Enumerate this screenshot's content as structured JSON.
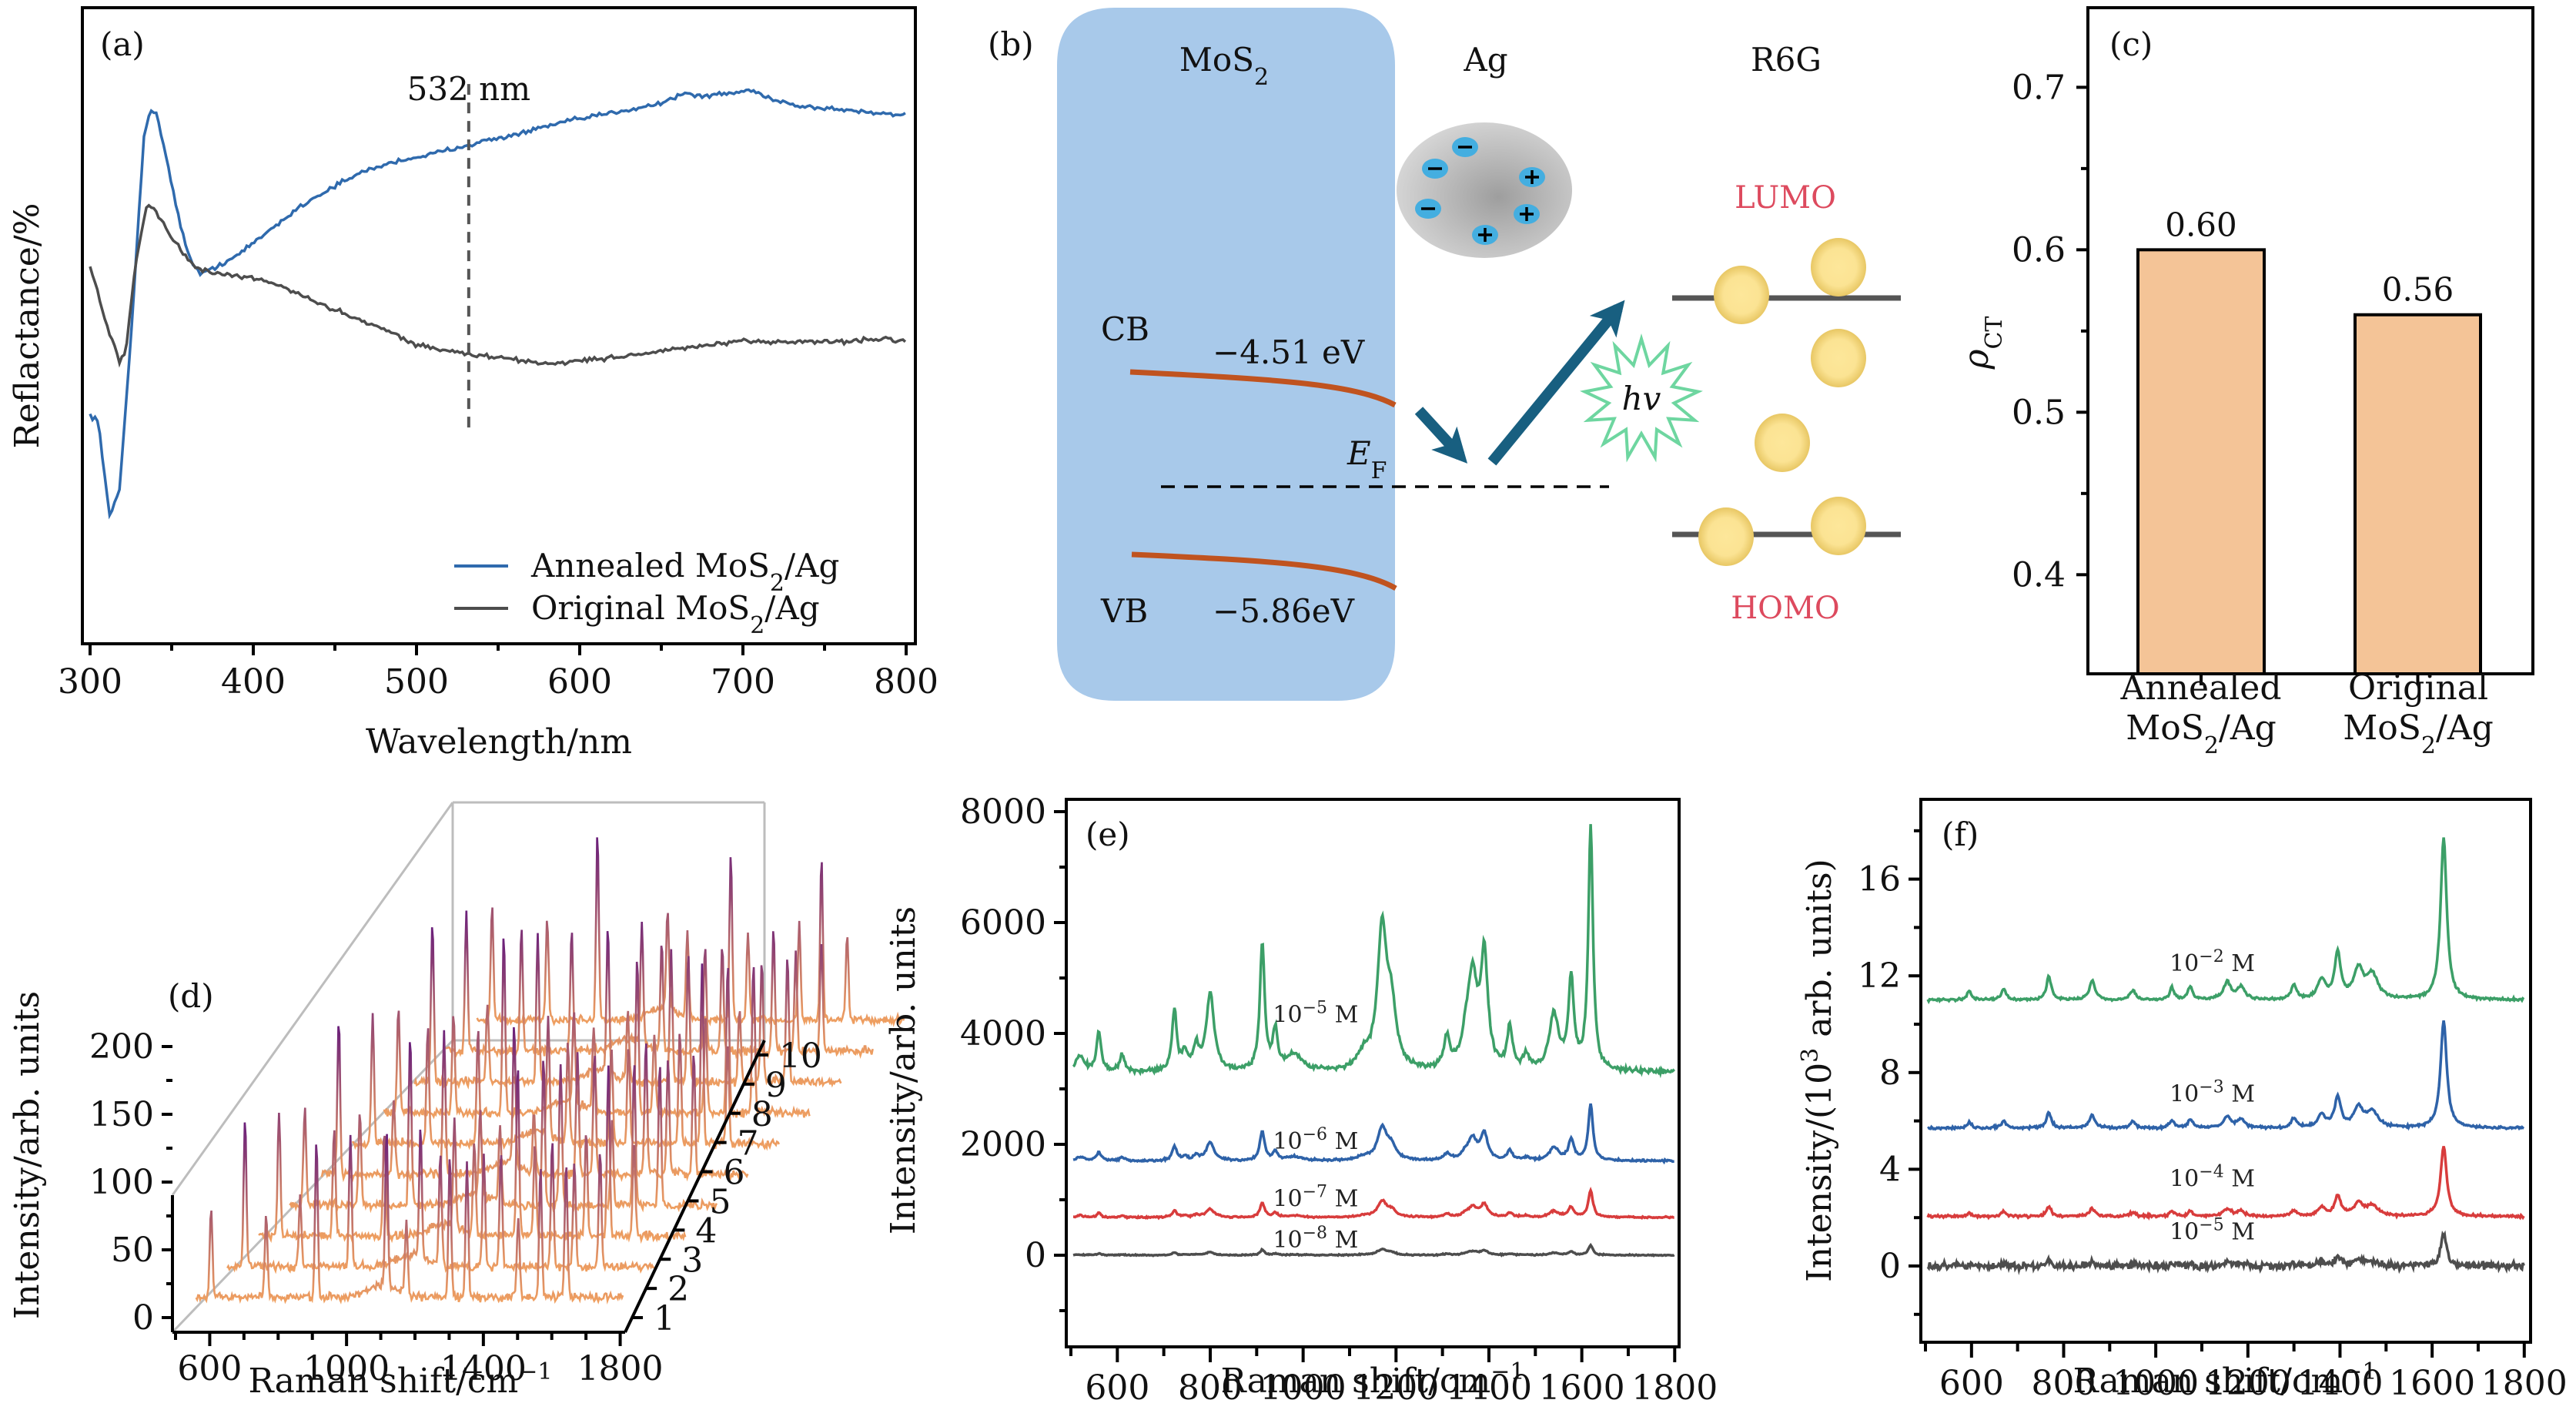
{
  "figure": {
    "panels": [
      "(a)",
      "(b)",
      "(c)",
      "(d)",
      "(e)",
      "(f)"
    ]
  },
  "colors": {
    "annealed": "#2f6aad",
    "original": "#4d4d4d",
    "bar_fill": "#f4c497",
    "mos2_box": "#a8c9ea",
    "band_line": "#c0531f",
    "arrow": "#185f80",
    "star": "#6ed6a0",
    "orbital_label": "#dd4a5e",
    "ball": "#f0d27a",
    "green": "#3c9f67",
    "blue": "#2e62a8",
    "red": "#d83c3c",
    "gray": "#4d4d4d",
    "waterfall_low": "#f0a060",
    "waterfall_high": "#6a1f7a"
  },
  "chart_data": [
    {
      "id": "a",
      "type": "line",
      "panel_label": "(a)",
      "xlabel": "Wavelength/nm",
      "ylabel": "Reflactance/%",
      "xlim": [
        298,
        803
      ],
      "ylim": [
        0,
        100
      ],
      "xticks": [
        300,
        400,
        500,
        600,
        700,
        800
      ],
      "yticks_shown": false,
      "annotation": {
        "text": "532 nm",
        "x": 532,
        "line_y_range": [
          34,
          88
        ]
      },
      "legend": {
        "placement": "bottom-right",
        "entries": [
          "Annealed MoS2/Ag",
          "Original MoS2/Ag"
        ]
      },
      "series": [
        {
          "name": "Annealed MoS2/Ag",
          "color_key": "annealed",
          "points": [
            [
              300,
              36
            ],
            [
              305,
              35
            ],
            [
              312,
              20
            ],
            [
              318,
              24
            ],
            [
              325,
              48
            ],
            [
              333,
              80
            ],
            [
              337,
              84
            ],
            [
              341,
              83
            ],
            [
              348,
              75
            ],
            [
              355,
              66
            ],
            [
              362,
              60
            ],
            [
              368,
              58
            ],
            [
              375,
              59
            ],
            [
              390,
              61
            ],
            [
              410,
              65
            ],
            [
              430,
              69
            ],
            [
              450,
              72
            ],
            [
              470,
              74.5
            ],
            [
              490,
              76
            ],
            [
              510,
              77
            ],
            [
              532,
              78.5
            ],
            [
              560,
              80
            ],
            [
              590,
              82
            ],
            [
              620,
              83.5
            ],
            [
              650,
              85
            ],
            [
              665,
              86.7
            ],
            [
              672,
              86
            ],
            [
              690,
              86.5
            ],
            [
              700,
              86.8
            ],
            [
              705,
              87
            ],
            [
              720,
              85.5
            ],
            [
              735,
              84.5
            ],
            [
              760,
              84
            ],
            [
              780,
              83.5
            ],
            [
              800,
              83.2
            ]
          ]
        },
        {
          "name": "Original MoS2/Ag",
          "color_key": "original",
          "points": [
            [
              300,
              59
            ],
            [
              305,
              55
            ],
            [
              310,
              50
            ],
            [
              315,
              47
            ],
            [
              318,
              44
            ],
            [
              322,
              46
            ],
            [
              328,
              60
            ],
            [
              334,
              68
            ],
            [
              338,
              69
            ],
            [
              345,
              66
            ],
            [
              355,
              62
            ],
            [
              365,
              59
            ],
            [
              380,
              58
            ],
            [
              400,
              57.5
            ],
            [
              420,
              56
            ],
            [
              440,
              53.5
            ],
            [
              460,
              51.5
            ],
            [
              480,
              49.5
            ],
            [
              500,
              47
            ],
            [
              520,
              46
            ],
            [
              532,
              45.5
            ],
            [
              550,
              45
            ],
            [
              580,
              44
            ],
            [
              600,
              44.5
            ],
            [
              620,
              45
            ],
            [
              650,
              46
            ],
            [
              680,
              47
            ],
            [
              700,
              47.5
            ],
            [
              730,
              47.5
            ],
            [
              760,
              47.5
            ],
            [
              790,
              48
            ],
            [
              800,
              47.5
            ]
          ]
        }
      ]
    },
    {
      "id": "c",
      "type": "bar",
      "panel_label": "(c)",
      "categories": [
        [
          "Annealed",
          "MoS2/Ag"
        ],
        [
          "Original",
          "MoS2/Ag"
        ]
      ],
      "values": [
        0.6,
        0.56
      ],
      "value_labels": [
        "0.60",
        "0.56"
      ],
      "ylabel": "ρCT",
      "ylim": [
        0.339,
        0.749
      ],
      "yticks": [
        0.4,
        0.5,
        0.6,
        0.7
      ],
      "ytick_labels": [
        "0.4",
        "0.5",
        "0.6",
        "0.7"
      ],
      "minor_yticks": [
        0.45,
        0.55,
        0.65
      ]
    },
    {
      "id": "d",
      "type": "line",
      "subtype": "waterfall-3d",
      "panel_label": "(d)",
      "xlabel": "Raman shift/cm−1",
      "ylabel": "Intensity/arb. units",
      "xlim": [
        500,
        1810
      ],
      "zlim": [
        0,
        215
      ],
      "xticks": [
        600,
        1000,
        1400,
        1800
      ],
      "zticks": [
        0,
        50,
        100,
        150,
        200
      ],
      "depth_ticks": [
        "1",
        "2",
        "3",
        "4",
        "5",
        "6",
        "7",
        "8",
        "9",
        "10"
      ],
      "traces": 10,
      "baseline": 20,
      "peaks": [
        [
          612,
          160
        ],
        [
          773,
          120
        ],
        [
          920,
          185
        ],
        [
          1125,
          150
        ],
        [
          1183,
          110
        ],
        [
          1310,
          170
        ],
        [
          1360,
          140
        ],
        [
          1510,
          130
        ],
        [
          1575,
          175
        ],
        [
          1650,
          150
        ]
      ]
    },
    {
      "id": "e",
      "type": "line",
      "panel_label": "(e)",
      "xlabel": "Raman shift/cm−1",
      "ylabel": "Intensity/arb. units",
      "xlim": [
        485,
        1815
      ],
      "ylim": [
        -1650,
        8220
      ],
      "xticks": [
        600,
        800,
        1000,
        1200,
        1400,
        1600,
        1800
      ],
      "yticks": [
        0,
        2000,
        4000,
        6000,
        8000
      ],
      "series": [
        {
          "name": "10−5 M",
          "label_base": "10",
          "label_exp": "−5",
          "label_unit": " M",
          "label_at": [
            935,
            4200
          ],
          "color_key": "green",
          "baseline": 3300,
          "scale": 1.0,
          "noise": 40
        },
        {
          "name": "10−6 M",
          "label_base": "10",
          "label_exp": "−6",
          "label_unit": " M",
          "label_at": [
            935,
            1920
          ],
          "color_key": "blue",
          "baseline": 1700,
          "scale": 0.23,
          "noise": 18
        },
        {
          "name": "10−7 M",
          "label_base": "10",
          "label_exp": "−7",
          "label_unit": " M",
          "label_at": [
            935,
            880
          ],
          "color_key": "red",
          "baseline": 680,
          "scale": 0.11,
          "noise": 14
        },
        {
          "name": "10−8 M",
          "label_base": "10",
          "label_exp": "−8",
          "label_unit": " M",
          "label_at": [
            935,
            140
          ],
          "color_key": "gray",
          "baseline": 0,
          "scale": 0.04,
          "noise": 10
        }
      ],
      "peaks": [
        [
          520,
          300,
          10
        ],
        [
          560,
          700,
          6
        ],
        [
          610,
          300,
          6
        ],
        [
          723,
          1100,
          6
        ],
        [
          745,
          300,
          6
        ],
        [
          770,
          400,
          8
        ],
        [
          800,
          1400,
          10
        ],
        [
          912,
          2300,
          6
        ],
        [
          940,
          700,
          6
        ],
        [
          980,
          300,
          20
        ],
        [
          1130,
          250,
          15
        ],
        [
          1170,
          2500,
          12
        ],
        [
          1190,
          1000,
          12
        ],
        [
          1310,
          550,
          8
        ],
        [
          1350,
          400,
          10
        ],
        [
          1365,
          1600,
          12
        ],
        [
          1390,
          2000,
          9
        ],
        [
          1445,
          750,
          7
        ],
        [
          1480,
          250,
          8
        ],
        [
          1540,
          1000,
          12
        ],
        [
          1577,
          1600,
          7
        ],
        [
          1619,
          4400,
          6
        ]
      ]
    },
    {
      "id": "f",
      "type": "line",
      "panel_label": "(f)",
      "xlabel": "Raman shift/cm−1",
      "ylabel": "Intensity/(103 arb. units)",
      "xlim": [
        490,
        1810
      ],
      "ylim": [
        -3.15,
        19.3
      ],
      "xticks": [
        600,
        800,
        1000,
        1200,
        1400,
        1600,
        1800
      ],
      "yticks": [
        0,
        4,
        8,
        12,
        16
      ],
      "series": [
        {
          "name": "10−2 M",
          "label_base": "10",
          "label_exp": "−2",
          "label_unit": " M",
          "label_at": [
            1030,
            12.2
          ],
          "color_key": "green",
          "baseline": 11.0,
          "scale": 1.0,
          "noise": 0.05
        },
        {
          "name": "10−3 M",
          "label_base": "10",
          "label_exp": "−3",
          "label_unit": " M",
          "label_at": [
            1030,
            6.8
          ],
          "color_key": "blue",
          "baseline": 5.7,
          "scale": 0.66,
          "noise": 0.05
        },
        {
          "name": "10−4 M",
          "label_base": "10",
          "label_exp": "−4",
          "label_unit": " M",
          "label_at": [
            1030,
            3.3
          ],
          "color_key": "red",
          "baseline": 2.05,
          "scale": 0.43,
          "noise": 0.05
        },
        {
          "name": "10−5 M",
          "label_base": "10",
          "label_exp": "−5",
          "label_unit": " M",
          "label_at": [
            1030,
            1.1
          ],
          "color_key": "gray",
          "baseline": 0.0,
          "scale": 0.19,
          "noise": 0.14
        }
      ],
      "peaks": [
        [
          595,
          0.35,
          6
        ],
        [
          670,
          0.45,
          6
        ],
        [
          768,
          1.0,
          6
        ],
        [
          862,
          0.8,
          7
        ],
        [
          950,
          0.4,
          7
        ],
        [
          1035,
          0.5,
          6
        ],
        [
          1075,
          0.55,
          6
        ],
        [
          1155,
          0.7,
          10
        ],
        [
          1185,
          0.5,
          10
        ],
        [
          1300,
          0.6,
          7
        ],
        [
          1360,
          0.8,
          10
        ],
        [
          1395,
          1.9,
          8
        ],
        [
          1440,
          1.2,
          12
        ],
        [
          1470,
          1.0,
          15
        ],
        [
          1625,
          6.7,
          8
        ]
      ]
    }
  ],
  "diagram_b": {
    "panel_label": "(b)",
    "mos2_label": "MoS",
    "mos2_sub": "2",
    "ag_label": "Ag",
    "r6g_label": "R6G",
    "cb_label": "CB",
    "vb_label": "VB",
    "cb_energy": "−4.51 eV",
    "vb_energy": "−5.86eV",
    "ef_label": "E",
    "ef_sub": "F",
    "lumo_label": "LUMO",
    "homo_label": "HOMO",
    "photon_label": "hv",
    "ag_charges": [
      "−",
      "−",
      "−",
      "+",
      "+",
      "+"
    ]
  },
  "legend_a": {
    "annealed": {
      "pre": "Annealed MoS",
      "sub": "2",
      "post": "/Ag"
    },
    "original": {
      "pre": "Original MoS",
      "sub": "2",
      "post": "/Ag"
    }
  },
  "axes_text": {
    "a_xlabel": "Wavelength/nm",
    "a_ylabel": "Reflactance/%",
    "a_annot": "532 nm",
    "c_ylabel_main": "ρ",
    "c_ylabel_sub": "CT",
    "c_cat1_l1": "Annealed",
    "c_cat1_l2_pre": "MoS",
    "c_cat1_l2_sub": "2",
    "c_cat1_l2_post": "/Ag",
    "c_cat2_l1": "Original",
    "c_cat2_l2_pre": "MoS",
    "c_cat2_l2_sub": "2",
    "c_cat2_l2_post": "/Ag",
    "raman_xlabel_pre": "Raman shift/cm",
    "raman_xlabel_sup": "−1",
    "de_ylabel": "Intensity/arb. units",
    "f_ylabel_pre": "Intensity/(10",
    "f_ylabel_sup": "3",
    "f_ylabel_post": " arb. units)"
  }
}
